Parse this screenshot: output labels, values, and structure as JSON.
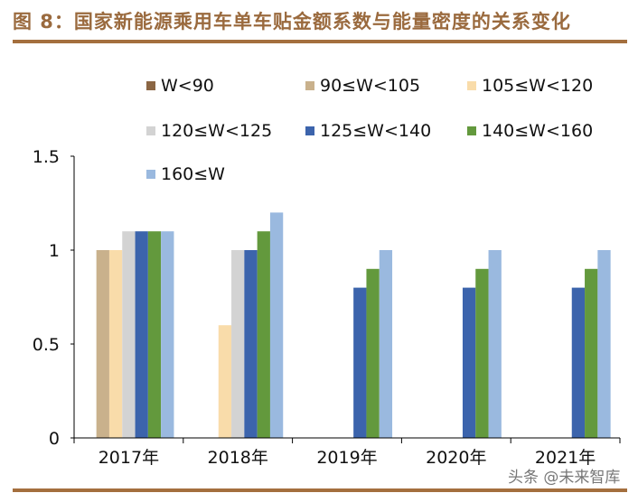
{
  "title": "图 8：国家新能源乘用车单车贴金额系数与能量密度的关系变化",
  "watermark": "头条 @未来智库",
  "chart_data": {
    "type": "bar",
    "title": "图 8：国家新能源乘用车单车贴金额系数与能量密度的关系变化",
    "xlabel": "",
    "ylabel": "",
    "categories": [
      "2017年",
      "2018年",
      "2019年",
      "2020年",
      "2021年"
    ],
    "ylim": [
      0,
      1.5
    ],
    "yticks": [
      "0",
      "0.5",
      "1",
      "1.5"
    ],
    "grid": false,
    "legend_position": "top",
    "series": [
      {
        "name": "W<90",
        "color": "#8b6644",
        "values": [
          0,
          0,
          0,
          0,
          0
        ]
      },
      {
        "name": "90≤W<105",
        "color": "#c9b18c",
        "values": [
          1,
          0,
          0,
          0,
          0
        ]
      },
      {
        "name": "105≤W<120",
        "color": "#f9dcaa",
        "values": [
          1,
          0.6,
          0,
          0,
          0
        ]
      },
      {
        "name": "120≤W<125",
        "color": "#d3d3d3",
        "values": [
          1.1,
          1,
          0,
          0,
          0
        ]
      },
      {
        "name": "125≤W<140",
        "color": "#3c64ac",
        "values": [
          1.1,
          1,
          0.8,
          0.8,
          0.8
        ]
      },
      {
        "name": "140≤W<160",
        "color": "#63993d",
        "values": [
          1.1,
          1.1,
          0.9,
          0.9,
          0.9
        ]
      },
      {
        "name": "160≤W",
        "color": "#9ab9df",
        "values": [
          1.1,
          1.2,
          1,
          1,
          1
        ]
      }
    ]
  }
}
